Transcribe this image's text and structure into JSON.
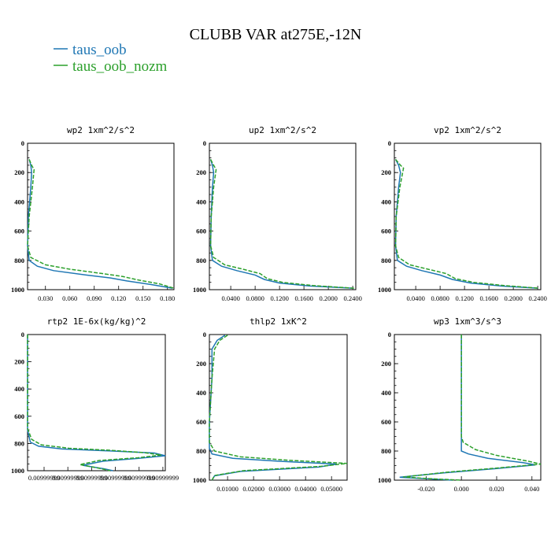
{
  "figure": {
    "title": "CLUBB VAR at275E,-12N",
    "legend": [
      {
        "label": "taus_oob",
        "color": "#1f77b4",
        "dash": "solid"
      },
      {
        "label": "taus_oob_nozm",
        "color": "#2ca02c",
        "dash": "dashed"
      }
    ]
  },
  "chart_data": [
    {
      "type": "line",
      "title": "wp2  1xm^2/s^2",
      "xlim": [
        0.008,
        0.188
      ],
      "ylim": [
        0,
        1000
      ],
      "y_inverted": true,
      "yticks": [
        0,
        200,
        400,
        600,
        800,
        1000
      ],
      "xticks": [
        0.03,
        0.06,
        0.09,
        0.12,
        0.15,
        0.18
      ],
      "xtick_labels": [
        "0.030",
        "0.060",
        "0.090",
        "0.120",
        "0.150",
        "0.180"
      ],
      "series": [
        {
          "name": "taus_oob",
          "color": "#1f77b4",
          "dash": "solid",
          "x": [
            0.01,
            0.012,
            0.013,
            0.012,
            0.009,
            0.008,
            0.01,
            0.02,
            0.04,
            0.08,
            0.11,
            0.13,
            0.16,
            0.186
          ],
          "y": [
            110,
            150,
            200,
            300,
            500,
            700,
            800,
            840,
            870,
            900,
            920,
            940,
            965,
            990
          ]
        },
        {
          "name": "taus_oob_nozm",
          "color": "#2ca02c",
          "dash": "dashed",
          "x": [
            0.01,
            0.013,
            0.016,
            0.014,
            0.01,
            0.008,
            0.012,
            0.03,
            0.06,
            0.1,
            0.125,
            0.145,
            0.17,
            0.188
          ],
          "y": [
            110,
            150,
            180,
            300,
            500,
            700,
            780,
            830,
            860,
            890,
            910,
            935,
            960,
            990
          ]
        }
      ]
    },
    {
      "type": "line",
      "title": "up2  1xm^2/s^2",
      "xlim": [
        0.005,
        0.245
      ],
      "ylim": [
        0,
        1000
      ],
      "y_inverted": true,
      "yticks": [
        0,
        200,
        400,
        600,
        800,
        1000
      ],
      "xticks": [
        0.04,
        0.08,
        0.12,
        0.16,
        0.2,
        0.24
      ],
      "xtick_labels": [
        "0.0400",
        "0.0800",
        "0.1200",
        "0.1600",
        "0.2000",
        "0.2400"
      ],
      "series": [
        {
          "name": "taus_oob",
          "color": "#1f77b4",
          "dash": "solid",
          "x": [
            0.007,
            0.01,
            0.012,
            0.01,
            0.008,
            0.007,
            0.01,
            0.025,
            0.05,
            0.08,
            0.095,
            0.12,
            0.17,
            0.24
          ],
          "y": [
            110,
            150,
            200,
            300,
            500,
            700,
            800,
            840,
            870,
            900,
            930,
            955,
            975,
            990
          ]
        },
        {
          "name": "taus_oob_nozm",
          "color": "#2ca02c",
          "dash": "dashed",
          "x": [
            0.007,
            0.012,
            0.016,
            0.012,
            0.008,
            0.007,
            0.012,
            0.03,
            0.06,
            0.088,
            0.1,
            0.125,
            0.175,
            0.242
          ],
          "y": [
            110,
            150,
            180,
            300,
            500,
            700,
            780,
            830,
            860,
            890,
            925,
            950,
            972,
            990
          ]
        }
      ]
    },
    {
      "type": "line",
      "title": "vp2  1xm^2/s^2",
      "xlim": [
        0.005,
        0.245
      ],
      "ylim": [
        0,
        1000
      ],
      "y_inverted": true,
      "yticks": [
        0,
        200,
        400,
        600,
        800,
        1000
      ],
      "xticks": [
        0.04,
        0.08,
        0.12,
        0.16,
        0.2,
        0.24
      ],
      "xtick_labels": [
        "0.0400",
        "0.0800",
        "0.1200",
        "0.1600",
        "0.2000",
        "0.2400"
      ],
      "series": [
        {
          "name": "taus_oob",
          "color": "#1f77b4",
          "dash": "solid",
          "x": [
            0.007,
            0.012,
            0.015,
            0.012,
            0.008,
            0.007,
            0.01,
            0.025,
            0.05,
            0.08,
            0.1,
            0.13,
            0.18,
            0.24
          ],
          "y": [
            110,
            150,
            200,
            300,
            500,
            700,
            800,
            840,
            870,
            900,
            930,
            955,
            975,
            990
          ]
        },
        {
          "name": "taus_oob_nozm",
          "color": "#2ca02c",
          "dash": "dashed",
          "x": [
            0.007,
            0.015,
            0.02,
            0.014,
            0.008,
            0.007,
            0.012,
            0.03,
            0.06,
            0.09,
            0.105,
            0.135,
            0.185,
            0.242
          ],
          "y": [
            110,
            150,
            170,
            300,
            500,
            700,
            780,
            830,
            860,
            890,
            925,
            950,
            972,
            990
          ]
        }
      ]
    },
    {
      "type": "line",
      "title": "rtp2  1E-6x(kg/kg)^2",
      "xlim": [
        0.00999999,
        0.00999999975
      ],
      "ylim": [
        0,
        1000
      ],
      "y_inverted": true,
      "yticks": [
        0,
        200,
        400,
        600,
        800,
        1000
      ],
      "xticks": [],
      "xtick_labels": [
        "0.00999999",
        "0.00999999",
        "0.00999999",
        "0.00999999",
        "0.00999999",
        "0.00999999"
      ],
      "series": [
        {
          "name": "taus_oob",
          "color": "#1f77b4",
          "dash": "solid",
          "x": [
            0.0,
            0.0,
            0.02,
            0.08,
            0.25,
            0.6,
            0.92,
            1.0,
            0.8,
            0.55,
            0.4,
            0.55,
            0.62
          ],
          "y": [
            0,
            700,
            790,
            820,
            840,
            855,
            870,
            890,
            910,
            930,
            960,
            985,
            1000
          ]
        },
        {
          "name": "taus_oob_nozm",
          "color": "#2ca02c",
          "dash": "dashed",
          "x": [
            0.0,
            0.0,
            0.03,
            0.1,
            0.3,
            0.6,
            0.85,
            0.97,
            0.8,
            0.52,
            0.38,
            0.52,
            0.6
          ],
          "y": [
            0,
            690,
            770,
            810,
            835,
            850,
            868,
            885,
            905,
            925,
            955,
            982,
            1000
          ]
        }
      ]
    },
    {
      "type": "line",
      "title": "thlp2  1xK^2",
      "xlim": [
        0.003,
        0.056
      ],
      "ylim": [
        0,
        1000
      ],
      "y_inverted": true,
      "yticks": [
        0,
        200,
        400,
        600,
        800,
        1000
      ],
      "xticks": [
        0.01,
        0.02,
        0.03,
        0.04,
        0.05
      ],
      "xtick_labels": [
        "0.01000",
        "0.02000",
        "0.03000",
        "0.04000",
        "0.05000"
      ],
      "series": [
        {
          "name": "taus_oob",
          "color": "#1f77b4",
          "dash": "solid",
          "x": [
            0.009,
            0.006,
            0.004,
            0.004,
            0.003,
            0.003,
            0.004,
            0.012,
            0.03,
            0.052,
            0.045,
            0.015,
            0.005,
            0.004
          ],
          "y": [
            5,
            40,
            100,
            300,
            600,
            780,
            820,
            850,
            870,
            890,
            910,
            940,
            970,
            1000
          ]
        },
        {
          "name": "taus_oob_nozm",
          "color": "#2ca02c",
          "dash": "dashed",
          "x": [
            0.01,
            0.007,
            0.005,
            0.004,
            0.003,
            0.003,
            0.005,
            0.015,
            0.035,
            0.056,
            0.046,
            0.016,
            0.005,
            0.004
          ],
          "y": [
            5,
            40,
            100,
            300,
            600,
            740,
            800,
            840,
            865,
            885,
            905,
            935,
            968,
            1000
          ]
        }
      ]
    },
    {
      "type": "line",
      "title": "wp3  1xm^3/s^3",
      "xlim": [
        -0.038,
        0.045
      ],
      "ylim": [
        0,
        1000
      ],
      "y_inverted": true,
      "yticks": [
        0,
        200,
        400,
        600,
        800,
        1000
      ],
      "xticks": [
        -0.02,
        0.0,
        0.02,
        0.04
      ],
      "xtick_labels": [
        "-0.020",
        "0.000",
        "0.020",
        "0.040"
      ],
      "series": [
        {
          "name": "taus_oob",
          "color": "#1f77b4",
          "dash": "solid",
          "x": [
            0.0,
            0.0,
            0.0,
            0.004,
            0.015,
            0.035,
            0.042,
            0.02,
            -0.01,
            -0.035,
            -0.02,
            -0.005
          ],
          "y": [
            0,
            700,
            800,
            820,
            850,
            880,
            895,
            920,
            950,
            980,
            990,
            1000
          ]
        },
        {
          "name": "taus_oob_nozm",
          "color": "#2ca02c",
          "dash": "dashed",
          "x": [
            0.0,
            0.0,
            0.001,
            0.008,
            0.02,
            0.038,
            0.045,
            0.022,
            -0.008,
            -0.033,
            -0.018,
            0.0
          ],
          "y": [
            0,
            700,
            740,
            790,
            830,
            870,
            890,
            915,
            945,
            978,
            990,
            1000
          ]
        }
      ]
    }
  ]
}
